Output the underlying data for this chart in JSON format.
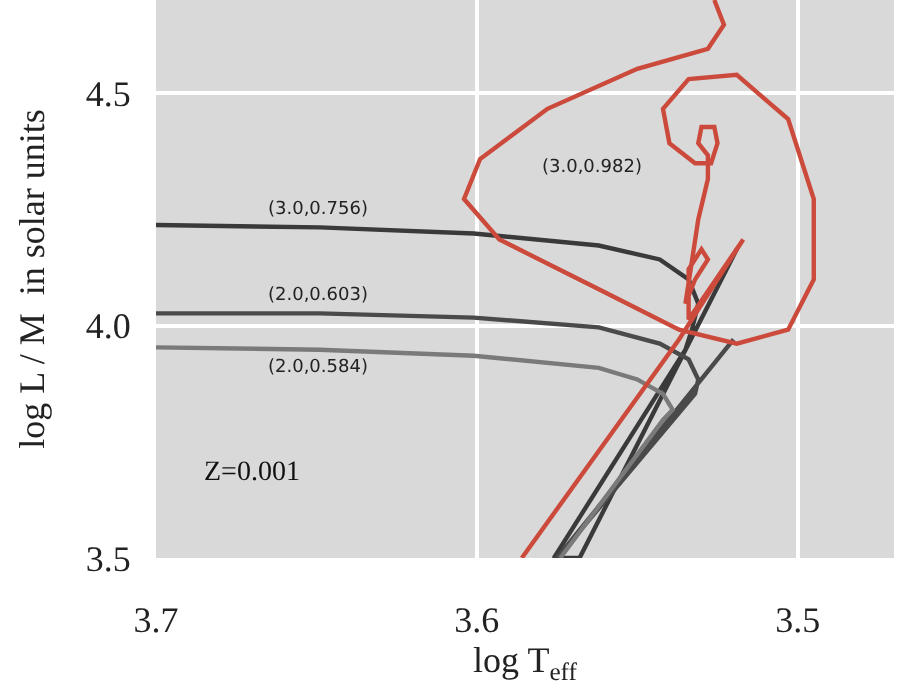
{
  "chart_data": {
    "type": "line",
    "xlabel": "log T$_{eff}$",
    "ylabel": "log L / M  in solar units",
    "xlim": [
      3.7,
      3.47
    ],
    "xticks": [
      3.7,
      3.6,
      3.5
    ],
    "ylim": [
      3.5,
      4.7
    ],
    "yticks": [
      3.5,
      {
        "value": 4.0,
        "label": "4.0"
      },
      4.5
    ],
    "grid": true,
    "marker": "none",
    "line_style": "solid",
    "series": [
      {
        "color": "#3a3a3a",
        "x": [
          3.7,
          3.649,
          3.601,
          3.562,
          3.543,
          3.534,
          3.531,
          3.533,
          3.535,
          3.576,
          3.568,
          3.519
        ],
        "values": [
          4.216,
          4.211,
          4.198,
          4.172,
          4.142,
          4.099,
          4.047,
          3.991,
          3.948,
          3.5,
          3.5,
          4.164
        ]
      },
      {
        "color": "#4a4a4a",
        "x": [
          3.7,
          3.649,
          3.601,
          3.562,
          3.543,
          3.534,
          3.531,
          3.532,
          3.575,
          3.52
        ],
        "values": [
          4.026,
          4.026,
          4.017,
          3.996,
          3.961,
          3.927,
          3.884,
          3.853,
          3.5,
          3.97
        ]
      },
      {
        "color": "#7a7a7a",
        "x": [
          3.7,
          3.649,
          3.601,
          3.562,
          3.55,
          3.542,
          3.539,
          3.542,
          3.574
        ],
        "values": [
          3.953,
          3.948,
          3.935,
          3.909,
          3.884,
          3.853,
          3.819,
          3.797,
          3.5
        ]
      },
      {
        "color": "#cc4a3c",
        "x": [
          3.586,
          3.537,
          3.517,
          3.534,
          3.534,
          3.53,
          3.528,
          3.532,
          3.535,
          3.531,
          3.528,
          3.528,
          3.531,
          3.53,
          3.526,
          3.525,
          3.527,
          3.532,
          3.54,
          3.542,
          3.534,
          3.519,
          3.503,
          3.495,
          3.495,
          3.503,
          3.519,
          3.537,
          3.562,
          3.593,
          3.604,
          3.599,
          3.578,
          3.55,
          3.528,
          3.523,
          3.526
        ],
        "values": [
          3.5,
          3.97,
          4.185,
          4.013,
          4.121,
          4.164,
          4.142,
          4.099,
          4.047,
          4.228,
          4.315,
          4.366,
          4.392,
          4.427,
          4.427,
          4.392,
          4.349,
          4.349,
          4.392,
          4.466,
          4.53,
          4.539,
          4.444,
          4.272,
          4.099,
          3.991,
          3.961,
          3.991,
          4.078,
          4.185,
          4.272,
          4.358,
          4.466,
          4.552,
          4.595,
          4.647,
          4.7
        ]
      }
    ],
    "annotations": [
      "(3.0,0.756)",
      "(2.0,0.603)",
      "(2.0,0.584)",
      "(3.0,0.982)",
      "Z=0.001"
    ]
  }
}
